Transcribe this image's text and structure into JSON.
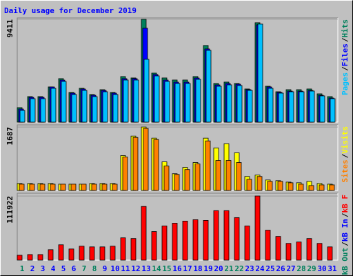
{
  "chart_data": {
    "type": "bar",
    "title": "Daily usage for December 2019",
    "categories": [
      1,
      2,
      3,
      4,
      5,
      6,
      7,
      8,
      9,
      10,
      11,
      12,
      13,
      14,
      15,
      16,
      17,
      18,
      19,
      20,
      21,
      22,
      23,
      24,
      25,
      26,
      27,
      28,
      29,
      30,
      31
    ],
    "category_colors": [
      "#00805c",
      "#0000ff",
      "#0000ff",
      "#0000ff",
      "#0000ff",
      "#0000ff",
      "#00805c",
      "#00805c",
      "#0000ff",
      "#0000ff",
      "#0000ff",
      "#0000ff",
      "#0000ff",
      "#00805c",
      "#00805c",
      "#0000ff",
      "#0000ff",
      "#0000ff",
      "#0000ff",
      "#0000ff",
      "#00805c",
      "#00805c",
      "#0000ff",
      "#0000ff",
      "#0000ff",
      "#0000ff",
      "#0000ff",
      "#00805c",
      "#00805c",
      "#0000ff",
      "#0000ff"
    ],
    "legend_separator": "/",
    "panels": [
      {
        "ylim": [
          0,
          9537
        ],
        "yticks": [
          9411
        ],
        "series": [
          {
            "name": "Hits",
            "color": "#00805c",
            "values": [
              1327,
              2338,
              2338,
              3223,
              3982,
              2718,
              3097,
              2528,
              2970,
              2718,
              4171,
              4045,
              9411,
              4487,
              4045,
              3855,
              3855,
              4171,
              7015,
              3539,
              3666,
              3539,
              3034,
              9101,
              3286,
              2781,
              2970,
              2970,
              3034,
              2591,
              2338
            ]
          },
          {
            "name": "Files",
            "color": "#0000ff",
            "values": [
              1200,
              2270,
              2270,
              3220,
              3850,
              2650,
              3030,
              2460,
              2900,
              2650,
              3980,
              3980,
              8595,
              4360,
              3850,
              3660,
              3660,
              4040,
              6700,
              3410,
              3540,
              3470,
              2970,
              8911,
              3220,
              2720,
              2840,
              2840,
              2900,
              2460,
              2210
            ]
          },
          {
            "name": "Pages",
            "color": "#00c0ff",
            "values": [
              1074,
              2149,
              2149,
              3097,
              3729,
              2528,
              2907,
              2338,
              2781,
              2528,
              3855,
              3855,
              5751,
              4234,
              3729,
              3539,
              3539,
              3918,
              6573,
              3286,
              3413,
              3350,
              2907,
              8974,
              3097,
              2654,
              2781,
              2781,
              2844,
              2402,
              2149
            ]
          }
        ]
      },
      {
        "ylim": [
          0,
          1743
        ],
        "yticks": [
          1687
        ],
        "series": [
          {
            "name": "Visits",
            "color": "#ffff00",
            "values": [
              185,
              185,
              185,
              185,
              167,
              167,
              167,
              185,
              185,
              185,
              927,
              1446,
              1687,
              1391,
              760,
              445,
              612,
              742,
              1391,
              1131,
              1242,
              1001,
              371,
              408,
              278,
              260,
              222,
              204,
              241,
              185,
              167
            ]
          },
          {
            "name": "Sites",
            "color": "#ff8000",
            "values": [
              167,
              167,
              167,
              167,
              167,
              167,
              167,
              167,
              167,
              167,
              890,
              1409,
              1650,
              1354,
              649,
              426,
              556,
              705,
              1317,
              797,
              797,
              742,
              297,
              371,
              241,
              241,
              204,
              167,
              130,
              148,
              148
            ]
          }
        ]
      },
      {
        "ylim": [
          0,
          116784
        ],
        "yticks": [
          111922
        ],
        "series": [
          {
            "name": "kB F",
            "color": "#ff0000",
            "values": [
              8516,
              9732,
              9732,
              18248,
              26763,
              19464,
              24330,
              23114,
              23114,
              24330,
              38928,
              37712,
              93671,
              49877,
              59609,
              64475,
              68124,
              70557,
              69341,
              86372,
              86372,
              74207,
              59609,
              111922,
              52310,
              41361,
              29196,
              31629,
              37712,
              29196,
              23114
            ]
          },
          {
            "name": "kB In",
            "color": "#0000ff",
            "values": [
              0,
              0,
              0,
              0,
              0,
              0,
              0,
              0,
              0,
              0,
              0,
              0,
              0,
              0,
              0,
              0,
              0,
              0,
              0,
              0,
              0,
              0,
              0,
              0,
              0,
              0,
              0,
              0,
              0,
              0,
              0
            ]
          },
          {
            "name": "kB Out",
            "color": "#00805c",
            "values": [
              0,
              0,
              0,
              0,
              0,
              0,
              0,
              0,
              0,
              0,
              0,
              0,
              0,
              0,
              0,
              0,
              0,
              0,
              0,
              0,
              0,
              0,
              0,
              0,
              0,
              0,
              0,
              0,
              0,
              0,
              0
            ]
          }
        ]
      }
    ]
  }
}
